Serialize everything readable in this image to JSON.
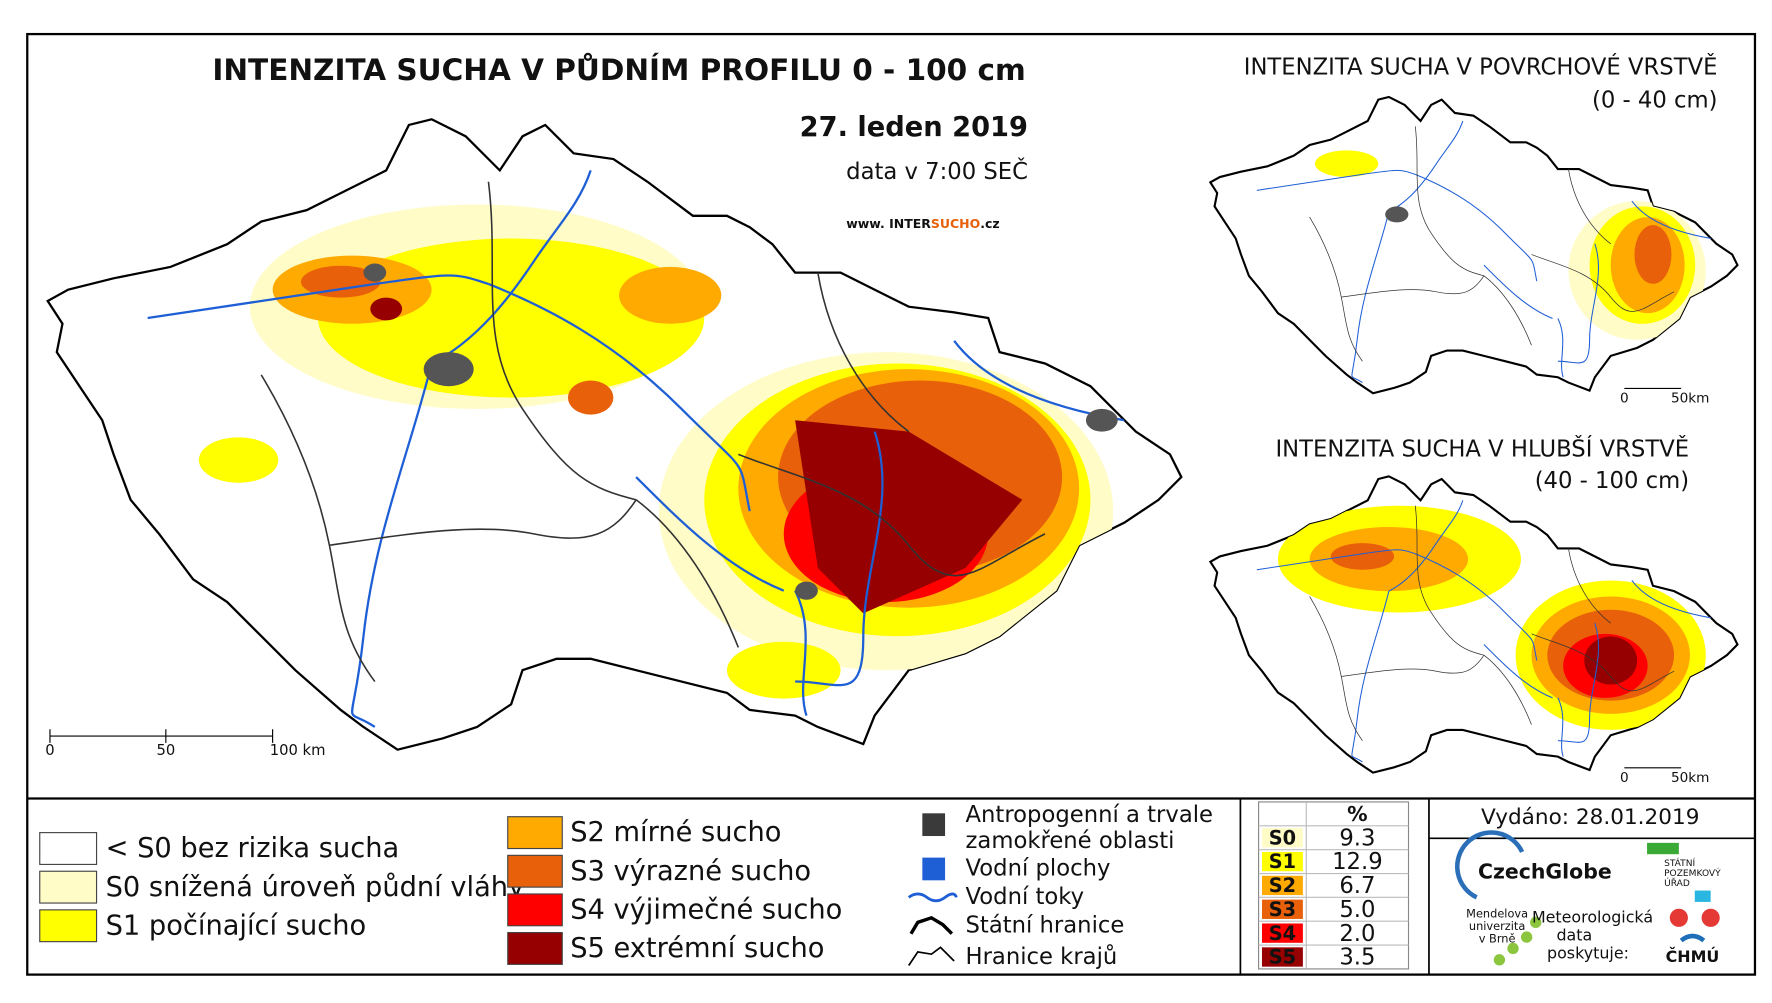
{
  "title": "INTENZITA SUCHA V PŮDNÍM PROFILU 0 - 100 cm",
  "date": "27. leden 2019",
  "data_time": "data v 7:00 SEČ",
  "website": [
    "www. INTER",
    "SUCHO",
    ".cz"
  ],
  "scale_main": [
    "0",
    "50",
    "100 km"
  ],
  "inset_surface": {
    "title": "INTENZITA SUCHA V POVRCHOVÉ VRSTVĚ",
    "depth": "(0 - 40 cm)",
    "scale": [
      "0",
      "50km"
    ]
  },
  "inset_deep": {
    "title": "INTENZITA SUCHA V HLUBŠÍ VRSTVĚ",
    "depth": "(40 - 100 cm)",
    "scale": [
      "0",
      "50km"
    ]
  },
  "legend": {
    "classes": [
      {
        "label": "< S0 bez rizika sucha",
        "color": "#ffffff"
      },
      {
        "label": "S0 snížená úroveň půdní vláhy",
        "color": "#fffcc8"
      },
      {
        "label": "S1 počínající sucho",
        "color": "#ffff00"
      },
      {
        "label": "S2 mírné sucho",
        "color": "#ffaa00"
      },
      {
        "label": "S3 výrazné sucho",
        "color": "#e8600a"
      },
      {
        "label": "S4 výjimečné sucho",
        "color": "#ff0000"
      },
      {
        "label": "S5 extrémní sucho",
        "color": "#960000"
      }
    ],
    "other": {
      "anthropogenic": [
        "Antropogenní a trvale",
        "zamokřené oblasti"
      ],
      "water_bodies": "Vodní plochy",
      "rivers": "Vodní toky",
      "state_border": "Státní hranice",
      "region_border": "Hranice krajů"
    }
  },
  "stats": {
    "header": "%",
    "rows": [
      [
        "S0",
        "9.3"
      ],
      [
        "S1",
        "12.9"
      ],
      [
        "S2",
        "6.7"
      ],
      [
        "S3",
        "5.0"
      ],
      [
        "S4",
        "2.0"
      ],
      [
        "S5",
        "3.5"
      ]
    ]
  },
  "issued": "Vydáno: 28.01.2019",
  "logos": {
    "czechglobe": "CzechGlobe",
    "mendel": [
      "Mendelova",
      "univerzita",
      "v Brně"
    ],
    "spu": [
      "STÁTNÍ",
      "POZEMKOVÝ",
      "ÚŘAD"
    ],
    "chmu_note": [
      "Meteorologická",
      "data",
      "poskytuje:"
    ],
    "chmu": "ČHMÚ"
  }
}
